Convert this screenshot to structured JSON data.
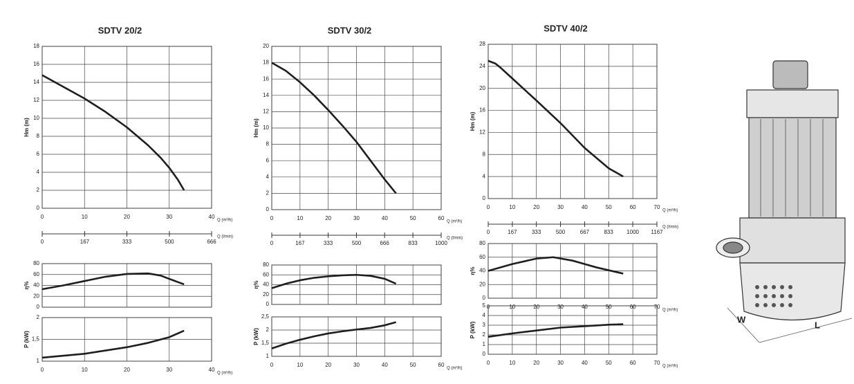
{
  "chart_data": [
    {
      "type": "line",
      "title": "SDTV 20/2",
      "ylabel": "Hm (m)",
      "xlabel": "Q (m³/h)",
      "x2label": "Q (l/min)",
      "x": [
        0,
        5,
        10,
        15,
        20,
        25,
        28,
        30,
        32,
        33.5
      ],
      "values": [
        14.8,
        13.5,
        12.2,
        10.7,
        9,
        7,
        5.6,
        4.5,
        3.2,
        2
      ],
      "xlim": [
        0,
        40
      ],
      "xticks": [
        0,
        10,
        20,
        30,
        40
      ],
      "ylim": [
        0,
        18
      ],
      "yticks": [
        0,
        2,
        4,
        6,
        8,
        10,
        12,
        14,
        16,
        18
      ],
      "x2lim": [
        0,
        666
      ],
      "x2ticks": [
        0,
        167,
        333,
        500,
        666
      ],
      "color": "#1e1e1e",
      "grid": true
    },
    {
      "type": "line",
      "ylabel": "η%",
      "x": [
        0,
        5,
        10,
        15,
        20,
        25,
        28,
        30,
        33.5
      ],
      "values": [
        33,
        40,
        48,
        56,
        61,
        62,
        58,
        52,
        42
      ],
      "xlim": [
        0,
        40
      ],
      "xticks": [
        0,
        10,
        20,
        30,
        40
      ],
      "ylim": [
        0,
        80
      ],
      "yticks": [
        0,
        20,
        40,
        60,
        80
      ],
      "color": "#1e1e1e",
      "grid": true
    },
    {
      "type": "line",
      "ylabel": "P (kW)",
      "xlabel": "Q (m³/h)",
      "x": [
        0,
        10,
        20,
        25,
        30,
        33.5
      ],
      "values": [
        1.08,
        1.17,
        1.32,
        1.42,
        1.55,
        1.7
      ],
      "xlim": [
        0,
        40
      ],
      "xticks": [
        0,
        10,
        20,
        30,
        40
      ],
      "ylim": [
        1,
        2
      ],
      "yticks": [
        1,
        {
          "value": 1.5,
          "label": "1,5"
        },
        2
      ],
      "color": "#1e1e1e",
      "grid": true
    },
    {
      "type": "line",
      "title": "SDTV 30/2",
      "ylabel": "Hm (m)",
      "xlabel": "Q (m³/h)",
      "x2label": "Q (l/min)",
      "x": [
        0,
        5,
        10,
        15,
        20,
        25,
        30,
        35,
        40,
        44
      ],
      "values": [
        18,
        17,
        15.6,
        14,
        12.2,
        10.3,
        8.3,
        6,
        3.7,
        2
      ],
      "xlim": [
        0,
        60
      ],
      "xticks": [
        0,
        10,
        20,
        30,
        40,
        50,
        60
      ],
      "ylim": [
        0,
        20
      ],
      "yticks": [
        0,
        2,
        4,
        6,
        8,
        10,
        12,
        14,
        16,
        18,
        20
      ],
      "x2lim": [
        0,
        1000
      ],
      "x2ticks": [
        0,
        167,
        333,
        500,
        666,
        833,
        1000
      ],
      "color": "#1e1e1e",
      "grid": true
    },
    {
      "type": "line",
      "ylabel": "η%",
      "x": [
        0,
        5,
        10,
        15,
        20,
        25,
        30,
        35,
        40,
        44
      ],
      "values": [
        33,
        42,
        49,
        54,
        57,
        59,
        60,
        58,
        52,
        42
      ],
      "xlim": [
        0,
        60
      ],
      "xticks": [
        0,
        10,
        20,
        30,
        40,
        50,
        60
      ],
      "ylim": [
        0,
        80
      ],
      "yticks": [
        0,
        20,
        40,
        60,
        80
      ],
      "color": "#1e1e1e",
      "grid": true
    },
    {
      "type": "line",
      "ylabel": "P (kW)",
      "xlabel": "Q (m³/h)",
      "x": [
        0,
        5,
        10,
        15,
        20,
        25,
        30,
        35,
        40,
        44
      ],
      "values": [
        1.3,
        1.48,
        1.63,
        1.76,
        1.87,
        1.95,
        2.02,
        2.08,
        2.18,
        2.3
      ],
      "xlim": [
        0,
        60
      ],
      "xticks": [
        0,
        10,
        20,
        30,
        40,
        50,
        60
      ],
      "ylim": [
        1,
        2.5
      ],
      "yticks": [
        1,
        {
          "value": 1.5,
          "label": "1,5"
        },
        2,
        {
          "value": 2.5,
          "label": "2,5"
        }
      ],
      "color": "#1e1e1e",
      "grid": true
    },
    {
      "type": "line",
      "title": "SDTV 40/2",
      "ylabel": "Hm (m)",
      "xlabel": "Q (m³/h)",
      "x2label": "Q (l/min)",
      "x": [
        0,
        3,
        5,
        10,
        20,
        30,
        40,
        50,
        56
      ],
      "values": [
        25,
        24.5,
        23.8,
        21.8,
        17.8,
        13.7,
        9.2,
        5.5,
        4
      ],
      "xlim": [
        0,
        70
      ],
      "xticks": [
        0,
        10,
        20,
        30,
        40,
        50,
        60,
        70
      ],
      "ylim": [
        0,
        28
      ],
      "yticks": [
        0,
        4,
        8,
        12,
        16,
        20,
        24,
        28
      ],
      "x2lim": [
        0,
        1167
      ],
      "x2ticks": [
        0,
        167,
        333,
        500,
        667,
        833,
        1000,
        1167
      ],
      "color": "#1e1e1e",
      "grid": true
    },
    {
      "type": "line",
      "ylabel": "η%",
      "xlabel": "Q (m³/h)",
      "x": [
        0,
        10,
        20,
        27,
        35,
        45,
        56
      ],
      "values": [
        40,
        50,
        58,
        60,
        55,
        45,
        36
      ],
      "xlim": [
        0,
        70
      ],
      "xticks": [
        0,
        10,
        20,
        30,
        40,
        50,
        60,
        70
      ],
      "ylim": [
        0,
        80
      ],
      "yticks": [
        0,
        20,
        40,
        60,
        80
      ],
      "color": "#1e1e1e",
      "grid": true
    },
    {
      "type": "line",
      "ylabel": "P (kW)",
      "xlabel": "Q (m³/h)",
      "x": [
        0,
        10,
        20,
        30,
        40,
        50,
        56
      ],
      "values": [
        1.8,
        2.15,
        2.45,
        2.75,
        2.9,
        3.05,
        3.1
      ],
      "xlim": [
        0,
        70
      ],
      "xticks": [
        0,
        10,
        20,
        30,
        40,
        50,
        60,
        70
      ],
      "ylim": [
        0,
        5
      ],
      "yticks": [
        0,
        1,
        2,
        3,
        4,
        5
      ],
      "color": "#1e1e1e",
      "grid": true
    }
  ],
  "pump": {
    "width_label": "W",
    "length_label": "L"
  }
}
